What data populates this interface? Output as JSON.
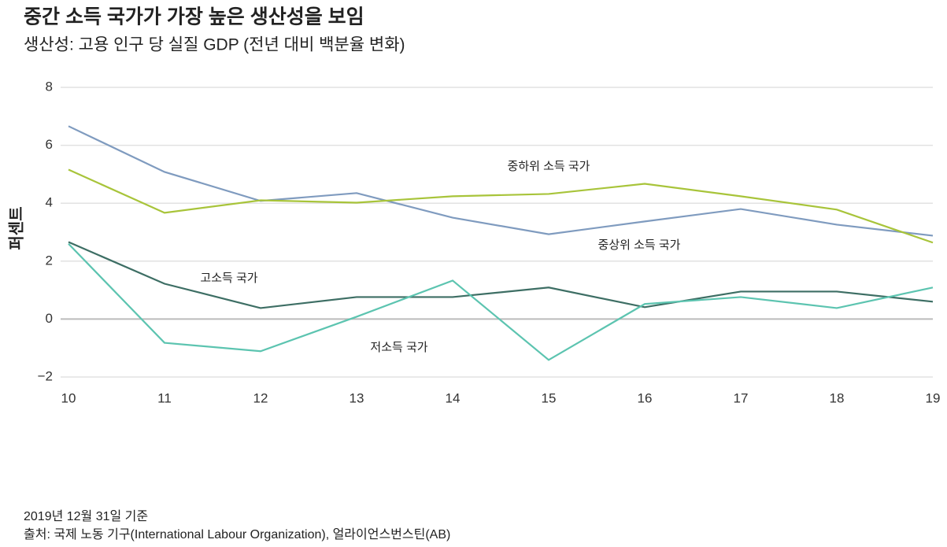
{
  "chart_data": {
    "type": "line",
    "title": "중간 소득 국가가 가장 높은 생산성을 보임",
    "subtitle": "생산성: 고용 인구 당 실질 GDP (전년 대비 백분율 변화)",
    "y_label": "퍼센트",
    "x": [
      10,
      11,
      12,
      13,
      14,
      15,
      16,
      17,
      18,
      19
    ],
    "xlim": [
      10,
      19
    ],
    "xticks": [
      10,
      11,
      12,
      13,
      14,
      15,
      16,
      17,
      18,
      19
    ],
    "ylim": [
      -2,
      8
    ],
    "yticks": [
      {
        "value": -2,
        "label": "−2"
      },
      0,
      2,
      4,
      6,
      8
    ],
    "grid": true,
    "series": [
      {
        "name": "중상위 소득 국가",
        "color": "#7f9bbf",
        "values": [
          6.66,
          5.08,
          4.08,
          4.35,
          3.5,
          2.93,
          3.37,
          3.8,
          3.26,
          2.88
        ]
      },
      {
        "name": "중하위 소득 국가",
        "color": "#a8c43a",
        "values": [
          5.16,
          3.67,
          4.1,
          4.02,
          4.24,
          4.32,
          4.67,
          4.24,
          3.78,
          2.64
        ]
      },
      {
        "name": "고소득 국가",
        "color": "#3d6e64",
        "values": [
          2.66,
          1.22,
          0.38,
          0.76,
          0.76,
          1.09,
          0.41,
          0.95,
          0.95,
          0.6
        ]
      },
      {
        "name": "저소득 국가",
        "color": "#5cc4b0",
        "values": [
          2.6,
          -0.82,
          -1.11,
          0.08,
          1.33,
          -1.41,
          0.52,
          0.76,
          0.38,
          1.09
        ]
      }
    ],
    "notes": [
      "2019년 12월 31일 기준",
      "출처: 국제 노동 기구(International Labour Organization), 얼라이언스번스틴(AB)"
    ]
  }
}
